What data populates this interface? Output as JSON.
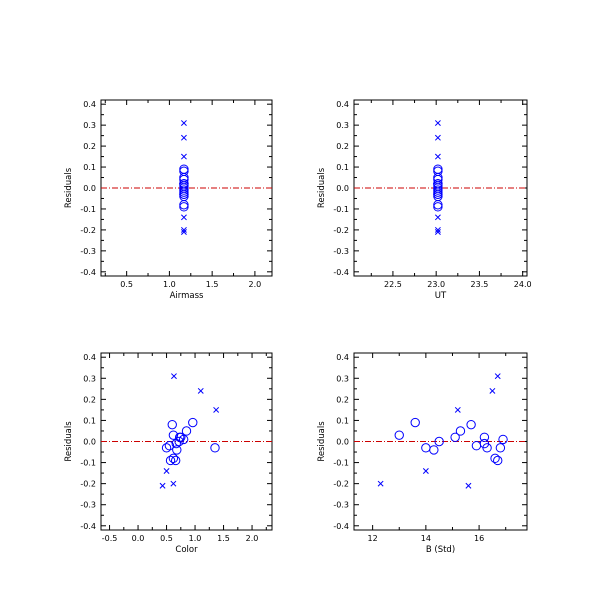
{
  "colors": {
    "marker": "#0000ff",
    "zero_line": "#cc0000",
    "axis": "#000000"
  },
  "chart_data": [
    {
      "type": "scatter",
      "xlabel": "Airmass",
      "ylabel": "Residuals",
      "xlim": [
        0.2,
        2.2
      ],
      "ylim": [
        -0.42,
        0.42
      ],
      "xticks": [
        0.5,
        1.0,
        1.5,
        2.0
      ],
      "xtick_labels": [
        "0.5",
        "1.0",
        "1.5",
        "2.0"
      ],
      "yticks": [
        -0.4,
        -0.3,
        -0.2,
        -0.1,
        0.0,
        0.1,
        0.2,
        0.3,
        0.4
      ],
      "ytick_labels": [
        "-0.4",
        "-0.3",
        "-0.2",
        "-0.1",
        "0.0",
        "0.1",
        "0.2",
        "0.3",
        "0.4"
      ],
      "zero_line": true,
      "series": [
        {
          "marker": "circle",
          "x": [
            1.17,
            1.17,
            1.17,
            1.17,
            1.17,
            1.17,
            1.17,
            1.17,
            1.17,
            1.17,
            1.17,
            1.17,
            1.17,
            1.17,
            1.17,
            1.17
          ],
          "y": [
            0.09,
            0.08,
            0.05,
            0.04,
            0.02,
            0.01,
            0.0,
            -0.01,
            -0.02,
            -0.03,
            -0.04,
            -0.03,
            0.02,
            -0.09,
            -0.08,
            0.02
          ]
        },
        {
          "marker": "cross",
          "x": [
            1.17,
            1.17,
            1.17,
            1.17,
            1.17,
            1.17
          ],
          "y": [
            0.31,
            0.24,
            0.15,
            -0.14,
            -0.2,
            -0.21
          ]
        }
      ]
    },
    {
      "type": "scatter",
      "xlabel": "UT",
      "ylabel": "Residuals",
      "xlim": [
        22.05,
        24.05
      ],
      "ylim": [
        -0.42,
        0.42
      ],
      "xticks": [
        22.5,
        23.0,
        23.5,
        24.0
      ],
      "xtick_labels": [
        "22.5",
        "23.0",
        "23.5",
        "24.0"
      ],
      "yticks": [
        -0.4,
        -0.3,
        -0.2,
        -0.1,
        0.0,
        0.1,
        0.2,
        0.3,
        0.4
      ],
      "ytick_labels": [
        "-0.4",
        "-0.3",
        "-0.2",
        "-0.1",
        "0.0",
        "0.1",
        "0.2",
        "0.3",
        "0.4"
      ],
      "zero_line": true,
      "series": [
        {
          "marker": "circle",
          "x": [
            23.02,
            23.02,
            23.02,
            23.02,
            23.02,
            23.02,
            23.02,
            23.02,
            23.02,
            23.02,
            23.02,
            23.02,
            23.02,
            23.02,
            23.02,
            23.02
          ],
          "y": [
            0.09,
            0.08,
            0.05,
            0.04,
            0.02,
            0.01,
            0.0,
            -0.01,
            -0.02,
            -0.03,
            -0.04,
            -0.03,
            0.02,
            -0.09,
            -0.08,
            0.02
          ]
        },
        {
          "marker": "cross",
          "x": [
            23.02,
            23.02,
            23.02,
            23.02,
            23.02,
            23.02
          ],
          "y": [
            0.31,
            0.24,
            0.15,
            -0.14,
            -0.2,
            -0.21
          ]
        }
      ]
    },
    {
      "type": "scatter",
      "xlabel": "Color",
      "ylabel": "Residuals",
      "xlim": [
        -0.65,
        2.35
      ],
      "ylim": [
        -0.42,
        0.42
      ],
      "xticks": [
        -0.5,
        0.0,
        0.5,
        1.0,
        1.5,
        2.0
      ],
      "xtick_labels": [
        "-0.5",
        "0.0",
        "0.5",
        "1.0",
        "1.5",
        "2.0"
      ],
      "yticks": [
        -0.4,
        -0.3,
        -0.2,
        -0.1,
        0.0,
        0.1,
        0.2,
        0.3,
        0.4
      ],
      "ytick_labels": [
        "-0.4",
        "-0.3",
        "-0.2",
        "-0.1",
        "0.0",
        "0.1",
        "0.2",
        "0.3",
        "0.4"
      ],
      "zero_line": true,
      "series": [
        {
          "marker": "circle",
          "x": [
            0.6,
            0.96,
            0.85,
            0.62,
            0.75,
            0.8,
            0.72,
            0.67,
            0.55,
            0.5,
            1.35,
            0.68,
            0.62,
            0.57,
            0.66,
            0.73
          ],
          "y": [
            0.08,
            0.09,
            0.05,
            0.03,
            0.02,
            0.01,
            0.0,
            -0.01,
            -0.02,
            -0.03,
            -0.03,
            -0.04,
            -0.08,
            -0.09,
            -0.09,
            0.02
          ]
        },
        {
          "marker": "cross",
          "x": [
            0.63,
            1.1,
            1.37,
            0.5,
            0.62,
            0.43
          ],
          "y": [
            0.31,
            0.24,
            0.15,
            -0.14,
            -0.2,
            -0.21
          ]
        }
      ]
    },
    {
      "type": "scatter",
      "xlabel": "B (Std)",
      "ylabel": "Residuals",
      "xlim": [
        11.3,
        17.8
      ],
      "ylim": [
        -0.42,
        0.42
      ],
      "xticks": [
        12,
        14,
        16
      ],
      "xtick_labels": [
        "12",
        "14",
        "16"
      ],
      "yticks": [
        -0.4,
        -0.3,
        -0.2,
        -0.1,
        0.0,
        0.1,
        0.2,
        0.3,
        0.4
      ],
      "ytick_labels": [
        "-0.4",
        "-0.3",
        "-0.2",
        "-0.1",
        "0.0",
        "0.1",
        "0.2",
        "0.3",
        "0.4"
      ],
      "zero_line": true,
      "series": [
        {
          "marker": "circle",
          "x": [
            13.6,
            15.7,
            15.3,
            13.0,
            16.2,
            16.9,
            14.5,
            15.1,
            16.2,
            14.0,
            16.3,
            14.3,
            16.6,
            16.7,
            15.9,
            16.8
          ],
          "y": [
            0.09,
            0.08,
            0.05,
            0.03,
            0.02,
            0.01,
            0.0,
            0.02,
            -0.01,
            -0.03,
            -0.03,
            -0.04,
            -0.08,
            -0.09,
            -0.02,
            -0.03
          ]
        },
        {
          "marker": "cross",
          "x": [
            16.7,
            16.5,
            15.2,
            14.0,
            12.3,
            15.6
          ],
          "y": [
            0.31,
            0.24,
            0.15,
            -0.14,
            -0.2,
            -0.21
          ]
        }
      ]
    }
  ]
}
